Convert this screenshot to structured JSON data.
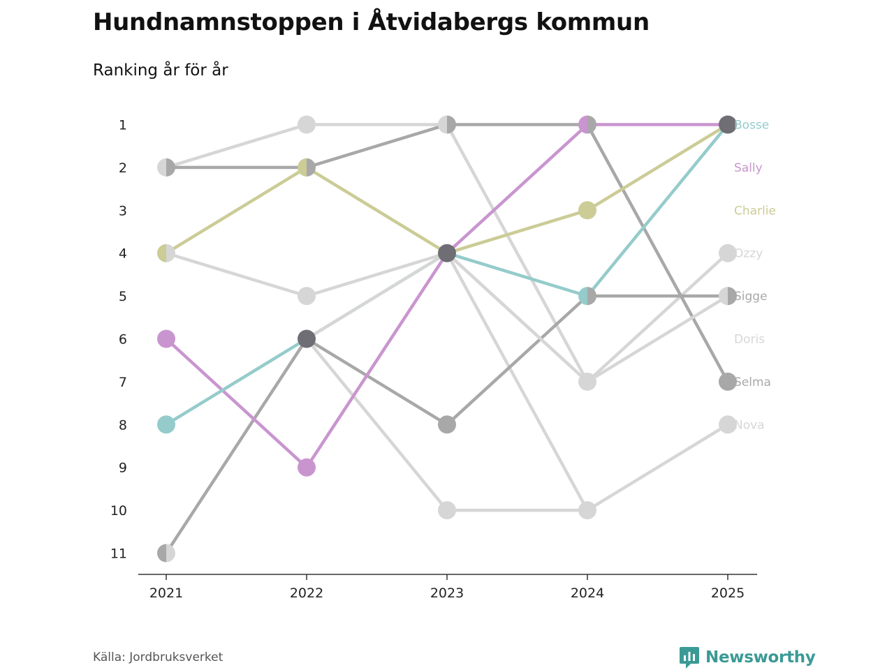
{
  "title": "Hundnamnstoppen i Åtvidabergs kommun",
  "subtitle": "Ranking år för år",
  "source": "Källa: Jordbruksverket",
  "brand": "Newsworthy",
  "colors": {
    "brand": "#3b9a95",
    "axis": "#333333"
  },
  "chart_data": {
    "type": "line",
    "title": "Hundnamnstoppen i Åtvidabergs kommun",
    "subtitle": "Ranking år för år",
    "x": [
      "2021",
      "2022",
      "2023",
      "2024",
      "2025"
    ],
    "y_ticks": [
      "1",
      "2",
      "3",
      "4",
      "5",
      "6",
      "7",
      "8",
      "9",
      "10",
      "11"
    ],
    "ylim": [
      1,
      11
    ],
    "y_inverted": true,
    "series": [
      {
        "name": "Nova",
        "color": "#d6d6d6",
        "values": [
          4,
          5,
          4,
          10,
          8
        ],
        "show_label": true
      },
      {
        "name": "Doris",
        "color": "#d6d6d6",
        "values": [
          null,
          6,
          10,
          10,
          null
        ],
        "show_label": true
      },
      {
        "name": "Ozzy",
        "color": "#d6d6d6",
        "values": [
          2,
          1,
          1,
          7,
          4
        ],
        "show_label": true
      },
      {
        "name": "Sigge",
        "color": "#a8a8a8",
        "values": [
          11,
          6,
          8,
          5,
          5
        ],
        "show_label": true
      },
      {
        "name": "Selma",
        "color": "#a8a8a8",
        "values": [
          2,
          2,
          1,
          1,
          7
        ],
        "show_label": true
      },
      {
        "name": "Charlie",
        "color": "#cbcc96",
        "values": [
          4,
          2,
          4,
          3,
          1
        ],
        "show_label": true
      },
      {
        "name": "Sally",
        "color": "#c995cf",
        "values": [
          6,
          9,
          4,
          1,
          1
        ],
        "show_label": true
      },
      {
        "name": "Bosse",
        "color": "#95cbcb",
        "values": [
          8,
          6,
          4,
          5,
          1
        ],
        "show_label": true
      },
      {
        "name": "",
        "color": "#d6d6d6",
        "values": [
          null,
          6,
          4,
          7,
          5
        ],
        "show_label": false
      },
      {
        "name": "",
        "color": "#d6d6d6",
        "values": [
          null,
          null,
          4,
          7,
          null
        ],
        "show_label": false
      }
    ],
    "end_labels": [
      {
        "name": "Bosse",
        "rank": 1,
        "color": "#95cbcb"
      },
      {
        "name": "Sally",
        "rank": 2,
        "color": "#c995cf"
      },
      {
        "name": "Charlie",
        "rank": 3,
        "color": "#cbcc96"
      },
      {
        "name": "Ozzy",
        "rank": 4,
        "color": "#d6d6d6"
      },
      {
        "name": "Sigge",
        "rank": 5,
        "color": "#a8a8a8"
      },
      {
        "name": "Doris",
        "rank": 6,
        "color": "#d6d6d6"
      },
      {
        "name": "Selma",
        "rank": 7,
        "color": "#a8a8a8"
      },
      {
        "name": "Nova",
        "rank": 8,
        "color": "#d6d6d6"
      }
    ],
    "points": [
      {
        "year": "2021",
        "rank": 2,
        "colors": [
          "#d6d6d6",
          "#a8a8a8"
        ]
      },
      {
        "year": "2021",
        "rank": 4,
        "colors": [
          "#cbcc96",
          "#d6d6d6"
        ]
      },
      {
        "year": "2021",
        "rank": 6,
        "colors": [
          "#c995cf"
        ]
      },
      {
        "year": "2021",
        "rank": 8,
        "colors": [
          "#95cbcb"
        ]
      },
      {
        "year": "2021",
        "rank": 11,
        "colors": [
          "#a8a8a8",
          "#d6d6d6"
        ]
      },
      {
        "year": "2022",
        "rank": 1,
        "colors": [
          "#d6d6d6"
        ]
      },
      {
        "year": "2022",
        "rank": 2,
        "colors": [
          "#cbcc96",
          "#a8a8a8"
        ]
      },
      {
        "year": "2022",
        "rank": 5,
        "colors": [
          "#d6d6d6"
        ]
      },
      {
        "year": "2022",
        "rank": 6,
        "colors": [
          "#6e6e74"
        ]
      },
      {
        "year": "2022",
        "rank": 9,
        "colors": [
          "#c995cf"
        ]
      },
      {
        "year": "2023",
        "rank": 1,
        "colors": [
          "#d6d6d6",
          "#a8a8a8"
        ]
      },
      {
        "year": "2023",
        "rank": 4,
        "colors": [
          "#6e6e74"
        ]
      },
      {
        "year": "2023",
        "rank": 8,
        "colors": [
          "#a8a8a8"
        ]
      },
      {
        "year": "2023",
        "rank": 10,
        "colors": [
          "#d6d6d6"
        ]
      },
      {
        "year": "2024",
        "rank": 1,
        "colors": [
          "#c995cf",
          "#a8a8a8"
        ]
      },
      {
        "year": "2024",
        "rank": 3,
        "colors": [
          "#cbcc96"
        ]
      },
      {
        "year": "2024",
        "rank": 5,
        "colors": [
          "#95cbcb",
          "#a8a8a8"
        ]
      },
      {
        "year": "2024",
        "rank": 7,
        "colors": [
          "#d6d6d6"
        ]
      },
      {
        "year": "2024",
        "rank": 10,
        "colors": [
          "#d6d6d6"
        ]
      },
      {
        "year": "2025",
        "rank": 1,
        "colors": [
          "#6e6e74"
        ]
      },
      {
        "year": "2025",
        "rank": 4,
        "colors": [
          "#d6d6d6"
        ]
      },
      {
        "year": "2025",
        "rank": 5,
        "colors": [
          "#d6d6d6",
          "#a8a8a8"
        ]
      },
      {
        "year": "2025",
        "rank": 7,
        "colors": [
          "#a8a8a8"
        ]
      },
      {
        "year": "2025",
        "rank": 8,
        "colors": [
          "#d6d6d6"
        ]
      }
    ]
  }
}
